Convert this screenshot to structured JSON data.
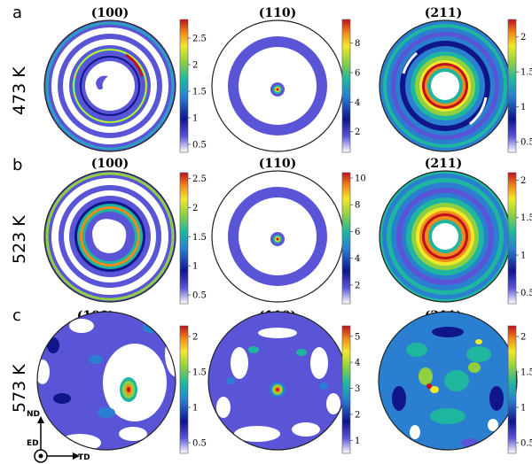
{
  "figure": {
    "rows": [
      {
        "panel_letter": "a",
        "temperature": "473 K",
        "plots": [
          {
            "plane": "(100)",
            "colorbar": {
              "ticks": [
                "0.5",
                "1",
                "1.5",
                "2",
                "2.5"
              ],
              "max": 2.85,
              "min": 0.35
            }
          },
          {
            "plane": "(110)",
            "colorbar": {
              "ticks": [
                "2",
                "4",
                "6",
                "8"
              ],
              "max": 9.6,
              "min": 0.6
            }
          },
          {
            "plane": "(211)",
            "colorbar": {
              "ticks": [
                "0.5",
                "1",
                "1.5",
                "2"
              ],
              "max": 2.25,
              "min": 0.35
            }
          }
        ]
      },
      {
        "panel_letter": "b",
        "temperature": "523 K",
        "plots": [
          {
            "plane": "(100)",
            "colorbar": {
              "ticks": [
                "0.5",
                "1",
                "1.5",
                "2",
                "2.5"
              ],
              "max": 2.6,
              "min": 0.35
            }
          },
          {
            "plane": "(110)",
            "colorbar": {
              "ticks": [
                "2",
                "4",
                "6",
                "8",
                "10"
              ],
              "max": 10.4,
              "min": 0.6
            }
          },
          {
            "plane": "(211)",
            "colorbar": {
              "ticks": [
                "0.5",
                "1",
                "1.5",
                "2"
              ],
              "max": 2.1,
              "min": 0.35
            }
          }
        ]
      },
      {
        "panel_letter": "c",
        "temperature": "573 K",
        "plots": [
          {
            "plane": "(100)",
            "colorbar": {
              "ticks": [
                "0.5",
                "1",
                "1.5",
                "2"
              ],
              "max": 2.15,
              "min": 0.35
            }
          },
          {
            "plane": "(110)",
            "colorbar": {
              "ticks": [
                "1",
                "2",
                "3",
                "4",
                "5"
              ],
              "max": 5.4,
              "min": 0.5
            }
          },
          {
            "plane": "(211)",
            "colorbar": {
              "ticks": [
                "0.5",
                "1",
                "1.5",
                "2"
              ],
              "max": 2.15,
              "min": 0.35
            }
          }
        ]
      }
    ],
    "axes_legend": {
      "nd": "ND",
      "ed": "ED",
      "td": "TD"
    }
  },
  "colors": {
    "colormap": [
      "#ffffff",
      "#5a55d6",
      "#10158a",
      "#2a7fd0",
      "#1fb6a0",
      "#90d040",
      "#f2e82a",
      "#f08a1c",
      "#c0101e"
    ],
    "outline": "#222222"
  },
  "chart_data": {
    "type": "heatmap",
    "description_kind": "pole figures (contour)",
    "panels": [
      {
        "row": "a",
        "temperature": "473 K",
        "plane": "(100)",
        "max_intensity": 2.85
      },
      {
        "row": "a",
        "temperature": "473 K",
        "plane": "(110)",
        "max_intensity": 9.6
      },
      {
        "row": "a",
        "temperature": "473 K",
        "plane": "(211)",
        "max_intensity": 2.25
      },
      {
        "row": "b",
        "temperature": "523 K",
        "plane": "(100)",
        "max_intensity": 2.6
      },
      {
        "row": "b",
        "temperature": "523 K",
        "plane": "(110)",
        "max_intensity": 10.4
      },
      {
        "row": "b",
        "temperature": "523 K",
        "plane": "(211)",
        "max_intensity": 2.1
      },
      {
        "row": "c",
        "temperature": "573 K",
        "plane": "(100)",
        "max_intensity": 2.15
      },
      {
        "row": "c",
        "temperature": "573 K",
        "plane": "(110)",
        "max_intensity": 5.4
      },
      {
        "row": "c",
        "temperature": "573 K",
        "plane": "(211)",
        "max_intensity": 2.15
      }
    ]
  }
}
